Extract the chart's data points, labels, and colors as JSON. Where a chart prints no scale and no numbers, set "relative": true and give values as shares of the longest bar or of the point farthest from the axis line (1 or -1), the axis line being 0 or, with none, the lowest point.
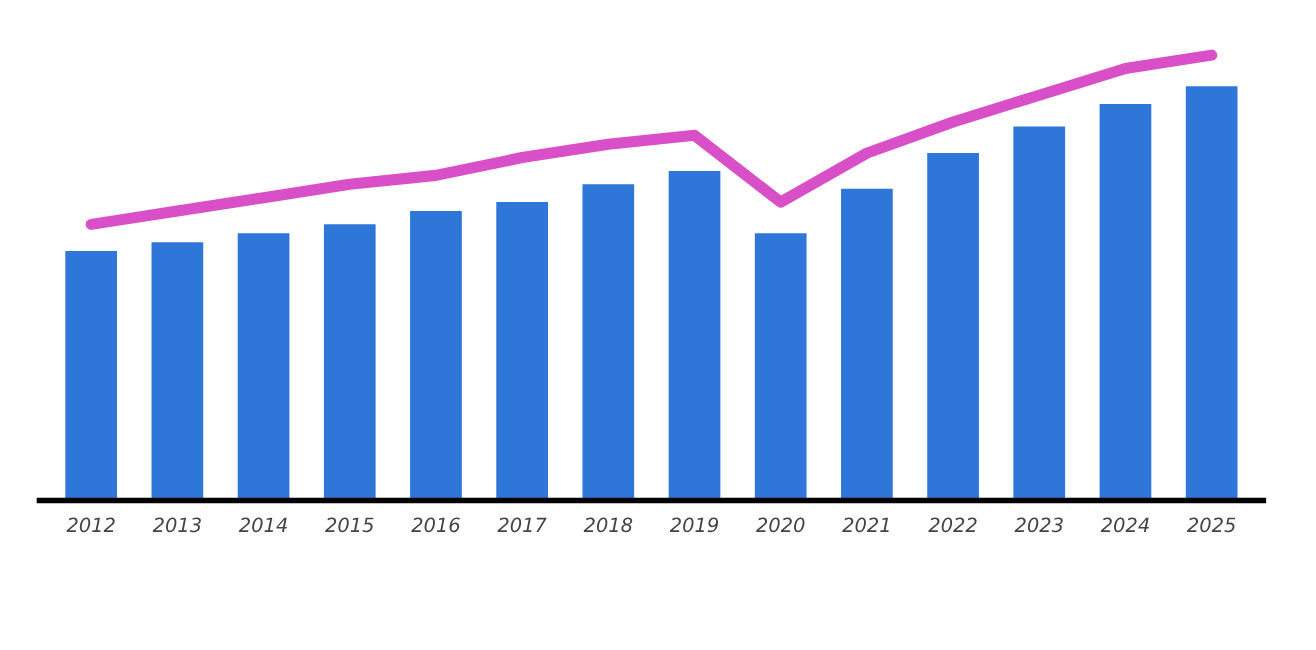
{
  "chart_data": {
    "type": "bar",
    "relative": true,
    "categories": [
      "2012",
      "2013",
      "2014",
      "2015",
      "2016",
      "2017",
      "2018",
      "2019",
      "2020",
      "2021",
      "2022",
      "2023",
      "2024",
      "2025"
    ],
    "series": [
      {
        "color": "#2e77d8",
        "values": [
          0.56,
          0.58,
          0.6,
          0.62,
          0.65,
          0.67,
          0.71,
          0.74,
          0.6,
          0.7,
          0.78,
          0.84,
          0.89,
          0.93
        ]
      },
      {
        "type": "line",
        "color": "#d94fc8",
        "values": [
          0.62,
          0.65,
          0.68,
          0.71,
          0.73,
          0.77,
          0.8,
          0.82,
          0.67,
          0.78,
          0.85,
          0.91,
          0.97,
          1.0
        ]
      }
    ]
  }
}
